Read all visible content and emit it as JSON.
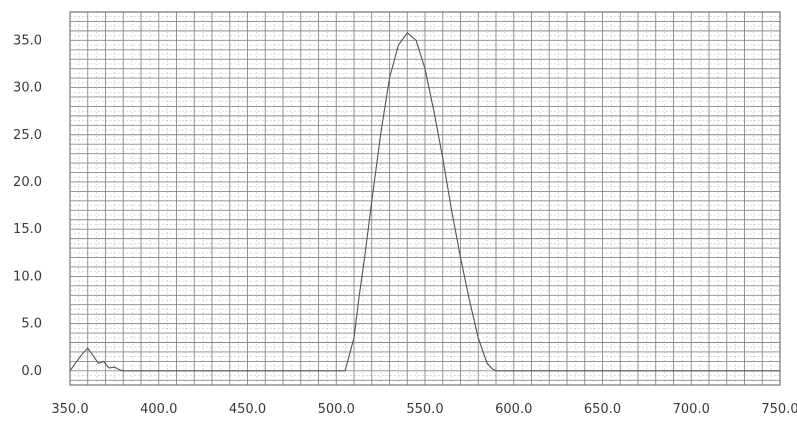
{
  "chart_data": {
    "type": "line",
    "title": "",
    "xlabel": "",
    "ylabel": "",
    "xlim": [
      350,
      750
    ],
    "ylim": [
      -1.5,
      38
    ],
    "grid": true,
    "x_ticks": [
      "350.0",
      "400.0",
      "450.0",
      "500.0",
      "550.0",
      "600.0",
      "650.0",
      "700.0",
      "750.0"
    ],
    "y_ticks": [
      "0.0",
      "5.0",
      "10.0",
      "15.0",
      "20.0",
      "25.0",
      "30.0",
      "35.0"
    ],
    "x_tick_values": [
      350,
      400,
      450,
      500,
      550,
      600,
      650,
      700,
      750
    ],
    "y_tick_values": [
      0,
      5,
      10,
      15,
      20,
      25,
      30,
      35
    ],
    "series": [
      {
        "color": "#555555",
        "x": [
          350,
          353,
          357,
          360,
          363,
          366,
          369,
          372,
          375,
          378,
          380,
          400,
          430,
          460,
          490,
          505,
          510,
          513,
          516,
          520,
          525,
          530,
          535,
          540,
          545,
          550,
          555,
          560,
          565,
          570,
          575,
          580,
          585,
          588,
          590,
          595,
          600,
          650,
          700,
          750
        ],
        "y": [
          0.0,
          0.8,
          1.8,
          2.4,
          1.6,
          0.8,
          1.0,
          0.3,
          0.4,
          0.1,
          0.0,
          0.0,
          0.0,
          0.0,
          0.0,
          0.0,
          3.5,
          8.0,
          12.0,
          18.0,
          25.0,
          31.0,
          34.5,
          35.8,
          35.0,
          32.0,
          27.5,
          22.5,
          17.0,
          12.0,
          7.5,
          3.5,
          0.8,
          0.2,
          0.0,
          0.0,
          0.0,
          0.0,
          0.0,
          0.0
        ]
      }
    ]
  }
}
